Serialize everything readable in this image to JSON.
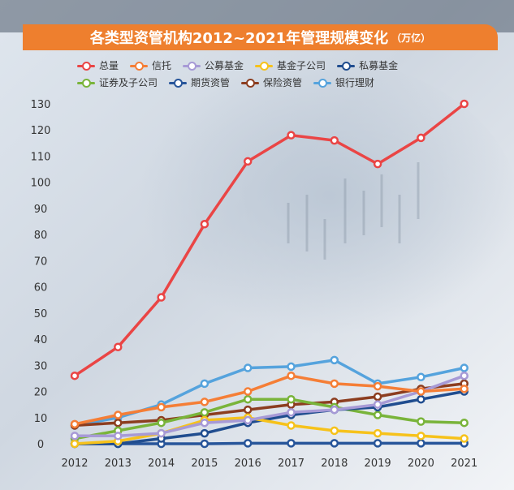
{
  "header": {
    "title": "各类型资管机构2012~2021年管理规模变化",
    "unit": "（万亿）",
    "bar_color": "#ee7f2e"
  },
  "chart_data": {
    "type": "line",
    "title": "各类型资管机构2012~2021年管理规模变化",
    "unit_label": "（万亿）",
    "xlabel": "",
    "ylabel": "",
    "x": [
      "2012",
      "2013",
      "2014",
      "2015",
      "2016",
      "2017",
      "2018",
      "2019",
      "2020",
      "2021"
    ],
    "yticks": [
      0,
      10,
      20,
      30,
      40,
      50,
      60,
      70,
      80,
      90,
      100,
      110,
      120,
      130
    ],
    "ylim": [
      0,
      130
    ],
    "grid": false,
    "legend_position": "top",
    "series": [
      {
        "name": "总量",
        "color": "#ea4545",
        "values": [
          26,
          37,
          56,
          84,
          108,
          118,
          116,
          107,
          117,
          130
        ]
      },
      {
        "name": "信托",
        "color": "#f57e36",
        "values": [
          7.5,
          11,
          14,
          16,
          20,
          26,
          23,
          22,
          20,
          21
        ]
      },
      {
        "name": "公募基金",
        "color": "#a79ad6",
        "values": [
          3,
          3,
          4,
          8,
          9,
          12,
          13,
          15,
          20,
          26
        ]
      },
      {
        "name": "基金子公司",
        "color": "#f6c21b",
        "values": [
          0,
          1,
          4,
          9,
          10,
          7,
          5,
          4,
          3,
          2
        ]
      },
      {
        "name": "私募基金",
        "color": "#204d8f",
        "values": [
          0,
          0,
          2,
          4,
          8,
          11,
          13,
          14,
          17,
          20
        ]
      },
      {
        "name": "证券及子公司",
        "color": "#79b43a",
        "values": [
          2,
          5,
          8,
          12,
          17,
          17,
          14,
          11,
          8.5,
          8
        ]
      },
      {
        "name": "期货资管",
        "color": "#27559a",
        "values": [
          0,
          0,
          0,
          0,
          0.2,
          0.2,
          0.2,
          0.2,
          0.2,
          0.2
        ]
      },
      {
        "name": "保险资管",
        "color": "#8c3d1f",
        "values": [
          7,
          8,
          9,
          11,
          13,
          15,
          16,
          18,
          21,
          23
        ]
      },
      {
        "name": "银行理财",
        "color": "#55a3dd",
        "values": [
          7,
          10,
          15,
          23,
          29,
          29.5,
          32,
          23,
          25.5,
          29
        ]
      }
    ]
  }
}
